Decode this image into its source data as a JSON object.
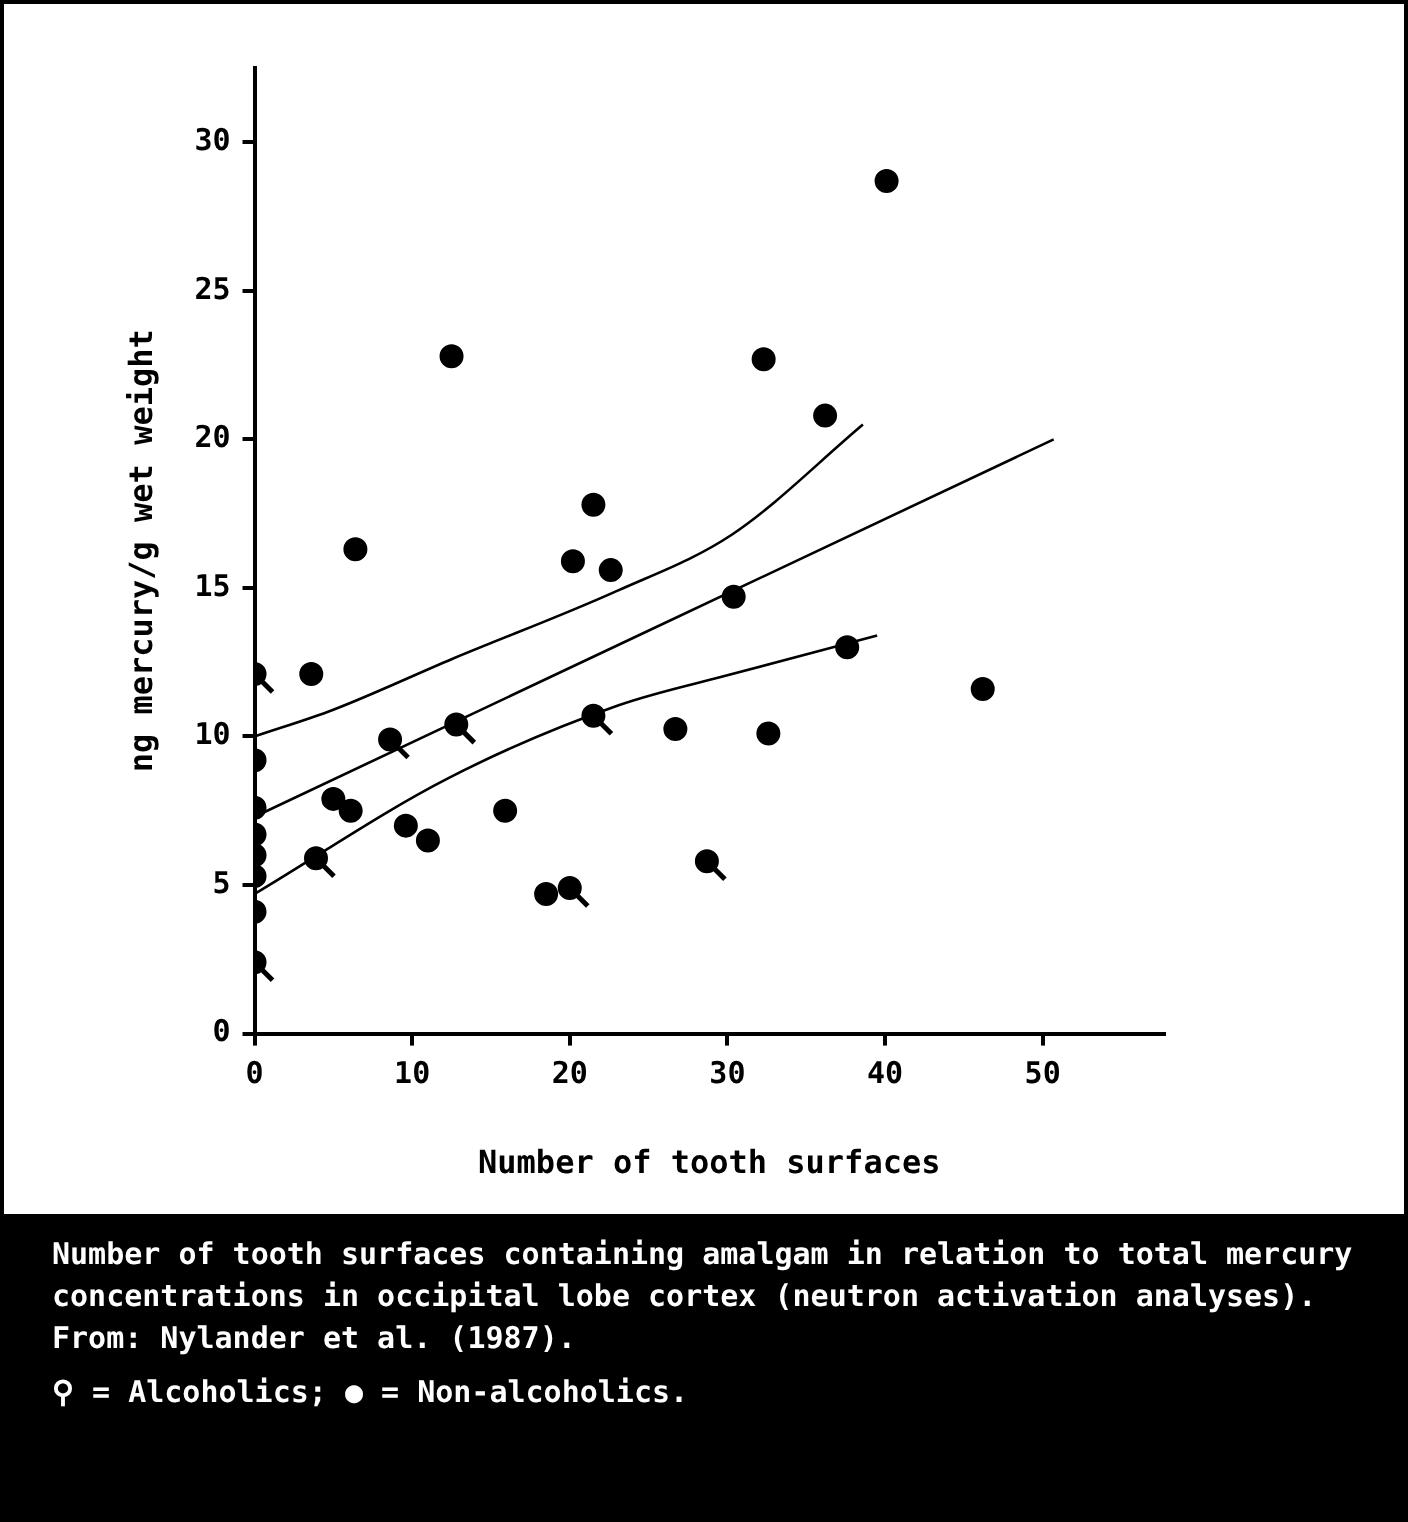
{
  "chart_data": {
    "type": "scatter",
    "xlabel": "Number of tooth surfaces",
    "ylabel": "ng mercury/g wet weight",
    "xlim": [
      0,
      57.7
    ],
    "ylim": [
      0,
      32.5
    ],
    "xticks": [
      0,
      10,
      20,
      30,
      40,
      50
    ],
    "yticks": [
      0,
      5,
      10,
      15,
      20,
      25,
      30
    ],
    "grid": false,
    "series": [
      {
        "marker": "circle",
        "color": "#000000",
        "x": [
          0,
          0,
          3.9,
          5.0,
          8.6,
          12.8,
          21.5,
          20.0,
          28.7
        ],
        "values": [
          12.1,
          2.4,
          5.9,
          7.9,
          9.9,
          10.4,
          10.7,
          4.9,
          5.8
        ]
      },
      {
        "marker": "circle",
        "color": "#000000",
        "x": [
          0,
          0,
          0,
          0,
          0,
          0,
          3.6,
          6.4,
          6.1,
          9.6,
          11.0,
          12.5,
          15.9,
          18.5,
          20.2,
          21.5,
          22.6,
          26.7,
          30.4,
          32.3,
          32.6,
          36.2,
          37.6,
          40.1,
          46.2
        ],
        "values": [
          9.2,
          7.6,
          6.7,
          6.0,
          5.3,
          4.1,
          12.1,
          16.3,
          7.5,
          7.0,
          6.5,
          22.8,
          7.5,
          4.7,
          15.9,
          17.8,
          15.6,
          10.25,
          14.7,
          22.7,
          10.1,
          20.8,
          13.0,
          28.7,
          11.6
        ]
      },
      {
        "type": "line",
        "color": "#000000",
        "x": [
          0,
          50.7
        ],
        "values": [
          7.3,
          20.0
        ]
      },
      {
        "type": "line",
        "color": "#000000",
        "x": [
          0,
          5,
          12.5,
          23,
          30.3,
          38.6
        ],
        "values": [
          10.0,
          10.9,
          12.6,
          14.9,
          16.8,
          20.5
        ]
      },
      {
        "type": "line",
        "color": "#000000",
        "x": [
          0,
          12.3,
          23.1,
          30.3,
          39.5
        ],
        "values": [
          4.7,
          8.6,
          11.05,
          12.1,
          13.4
        ]
      }
    ],
    "annotations": [
      "Number of tooth surfaces containing amalgam in relation to total mercury concentrations in occipital lobe cortex (neutron activation analyses). From: Nylander et al. (1987).",
      "⚲ = Alcoholics; ● = Non-alcoholics."
    ]
  }
}
